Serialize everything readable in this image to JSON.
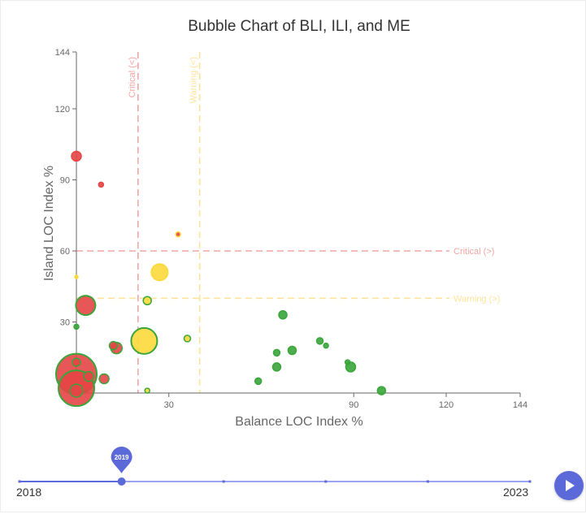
{
  "chart_data": {
    "type": "scatter",
    "title": "Bubble Chart of BLI, ILI, and ME",
    "xlabel": "Balance LOC Index %",
    "ylabel": "Island LOC Index %",
    "xlim": [
      0,
      144
    ],
    "ylim": [
      0,
      144
    ],
    "x_ticks": [
      30,
      90,
      120,
      144
    ],
    "y_ticks": [
      30,
      60,
      90,
      120,
      144
    ],
    "colors": {
      "red": "#e64545",
      "yellow": "#fcd93a",
      "green": "#3aa53a",
      "critical_line": "#f3a6a6",
      "warning_line": "#fde49a",
      "axis": "#666666"
    },
    "reference_lines": [
      {
        "orientation": "vertical",
        "value": 20,
        "label": "Critical (<)",
        "color": "#f3a6a6"
      },
      {
        "orientation": "vertical",
        "value": 40,
        "label": "Warning (<)",
        "color": "#fde49a"
      },
      {
        "orientation": "horizontal",
        "value": 60,
        "label": "Critical (>)",
        "color": "#f3a6a6"
      },
      {
        "orientation": "horizontal",
        "value": 40,
        "label": "Warning (>)",
        "color": "#fde49a"
      }
    ],
    "points": [
      {
        "x": 0,
        "y": 100,
        "size": 6,
        "fill": "red",
        "stroke": "red"
      },
      {
        "x": 8,
        "y": 88,
        "size": 3,
        "fill": "red",
        "stroke": "red"
      },
      {
        "x": 33,
        "y": 67,
        "size": 3,
        "fill": "red",
        "stroke": "yellow"
      },
      {
        "x": 0,
        "y": 49,
        "size": 2,
        "fill": "yellow",
        "stroke": "yellow"
      },
      {
        "x": 27,
        "y": 51,
        "size": 10,
        "fill": "yellow",
        "stroke": "yellow"
      },
      {
        "x": 23,
        "y": 39,
        "size": 5,
        "fill": "yellow",
        "stroke": "green"
      },
      {
        "x": 3,
        "y": 37,
        "size": 12,
        "fill": "red",
        "stroke": "green"
      },
      {
        "x": 0,
        "y": 28,
        "size": 3,
        "fill": "green",
        "stroke": "green"
      },
      {
        "x": 22,
        "y": 22,
        "size": 16,
        "fill": "yellow",
        "stroke": "green"
      },
      {
        "x": 36,
        "y": 23,
        "size": 4,
        "fill": "yellow",
        "stroke": "green"
      },
      {
        "x": 12,
        "y": 20,
        "size": 5,
        "fill": "red",
        "stroke": "green"
      },
      {
        "x": 13,
        "y": 19,
        "size": 7,
        "fill": "red",
        "stroke": "green"
      },
      {
        "x": 0,
        "y": 13,
        "size": 5,
        "fill": "red",
        "stroke": "green"
      },
      {
        "x": 0,
        "y": 8,
        "size": 25,
        "fill": "red",
        "stroke": "green"
      },
      {
        "x": 4,
        "y": 7,
        "size": 6,
        "fill": "red",
        "stroke": "green"
      },
      {
        "x": 9,
        "y": 6,
        "size": 6,
        "fill": "red",
        "stroke": "green"
      },
      {
        "x": 0,
        "y": 2,
        "size": 22,
        "fill": "red",
        "stroke": "green"
      },
      {
        "x": 0,
        "y": 1,
        "size": 8,
        "fill": "red",
        "stroke": "green"
      },
      {
        "x": 23,
        "y": 1,
        "size": 3,
        "fill": "yellow",
        "stroke": "green"
      },
      {
        "x": 67,
        "y": 33,
        "size": 5,
        "fill": "green",
        "stroke": "green"
      },
      {
        "x": 79,
        "y": 22,
        "size": 4,
        "fill": "green",
        "stroke": "green"
      },
      {
        "x": 81,
        "y": 20,
        "size": 3,
        "fill": "green",
        "stroke": "green"
      },
      {
        "x": 70,
        "y": 18,
        "size": 5,
        "fill": "green",
        "stroke": "green"
      },
      {
        "x": 65,
        "y": 17,
        "size": 4,
        "fill": "green",
        "stroke": "green"
      },
      {
        "x": 65,
        "y": 11,
        "size": 5,
        "fill": "green",
        "stroke": "green"
      },
      {
        "x": 88,
        "y": 13,
        "size": 3,
        "fill": "green",
        "stroke": "green"
      },
      {
        "x": 89,
        "y": 11,
        "size": 6,
        "fill": "green",
        "stroke": "green"
      },
      {
        "x": 59,
        "y": 5,
        "size": 4,
        "fill": "green",
        "stroke": "green"
      },
      {
        "x": 99,
        "y": 1,
        "size": 5,
        "fill": "green",
        "stroke": "green"
      }
    ]
  },
  "timeline": {
    "start_year": 2018,
    "end_year": 2023,
    "start_label": "2018",
    "end_label": "2023",
    "current_year": 2019,
    "current_label": "2019",
    "tick_years": [
      2018,
      2019,
      2020,
      2021,
      2022,
      2023
    ],
    "track_color": "#9aa3ee",
    "progress_color": "#5b6ad8",
    "marker_color": "#5b6ad8"
  },
  "play_button": {
    "icon": "play-icon"
  }
}
